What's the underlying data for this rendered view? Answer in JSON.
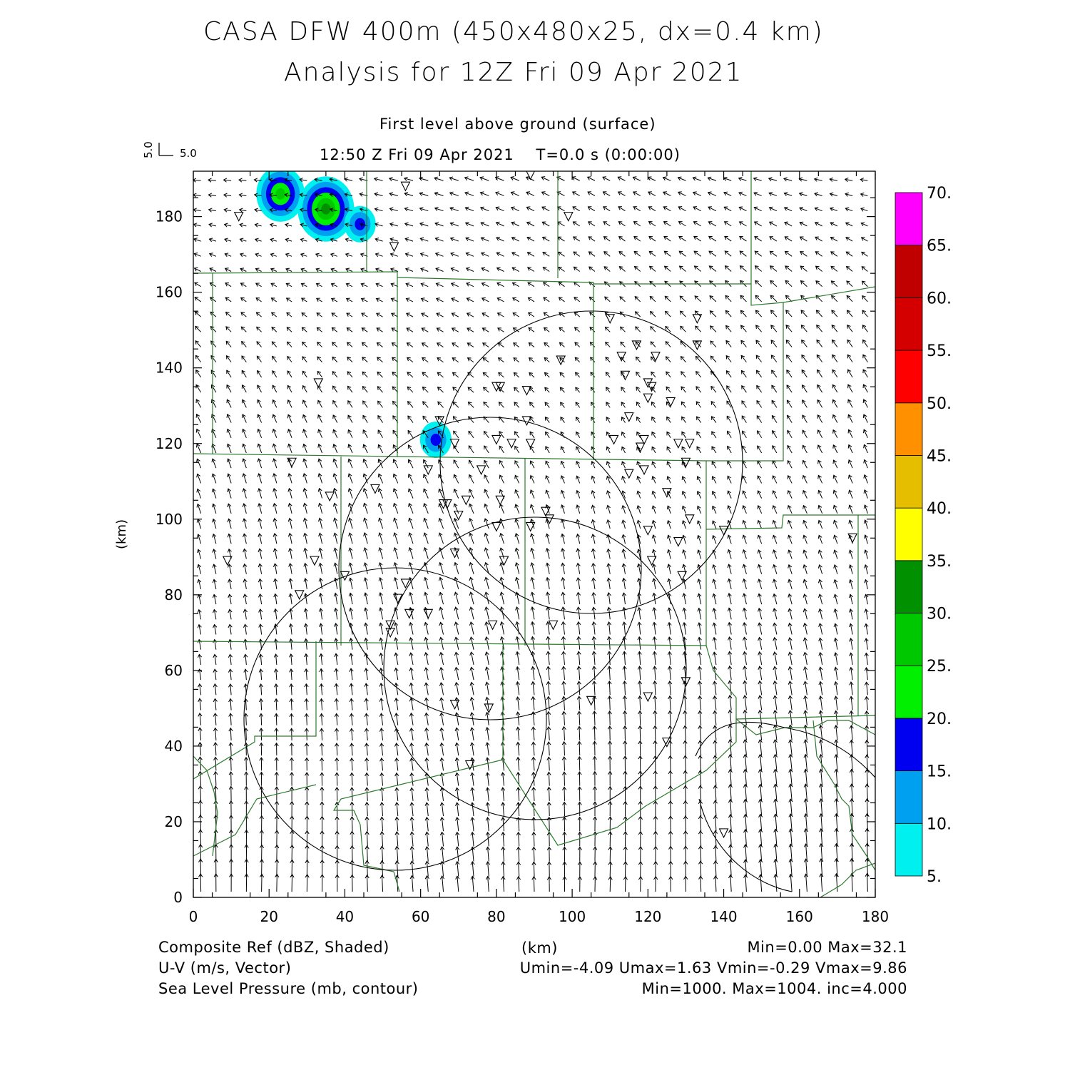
{
  "header": {
    "title_line1": "CASA DFW 400m (450x480x25, dx=0.4 km)",
    "title_line2": "Analysis for 12Z Fri 09 Apr 2021",
    "level": "First level above ground (surface)",
    "time": "12:50 Z Fri 09 Apr 2021    T=0.0 s (0:00:00)",
    "ref_vector_x": "5.0",
    "ref_vector_y": "5.0"
  },
  "axes": {
    "xlabel": "(km)",
    "ylabel": "(km)",
    "x_ticks": [
      "0",
      "20",
      "40",
      "60",
      "80",
      "100",
      "120",
      "140",
      "160",
      "180"
    ],
    "y_ticks": [
      "0",
      "20",
      "40",
      "60",
      "80",
      "100",
      "120",
      "140",
      "160",
      "180"
    ],
    "xlim": [
      0,
      180
    ],
    "ylim": [
      0,
      192
    ]
  },
  "colorbar": {
    "labels": [
      "5.",
      "10.",
      "15.",
      "20.",
      "25.",
      "30.",
      "35.",
      "40.",
      "45.",
      "50.",
      "55.",
      "60.",
      "65.",
      "70."
    ],
    "colors": [
      "#00f0f0",
      "#00a0f0",
      "#0000f0",
      "#00f000",
      "#00c800",
      "#009000",
      "#ffff00",
      "#e6be00",
      "#ff9000",
      "#ff0000",
      "#d40000",
      "#c00000",
      "#ff00ff"
    ]
  },
  "footer": {
    "left1": "Composite Ref (dBZ, Shaded)",
    "left2": "U-V (m/s, Vector)",
    "left3": "Sea Level Pressure (mb, contour)",
    "center": "(km)",
    "right1": "Min=0.00 Max=32.1",
    "right2": "Umin=-4.09 Umax=1.63 Vmin=-0.29 Vmax=9.86",
    "right3": "Min=1000. Max=1004. inc=4.000"
  },
  "stations": [
    [
      56,
      188
    ],
    [
      89,
      191
    ],
    [
      12,
      180
    ],
    [
      99,
      180
    ],
    [
      53,
      172
    ],
    [
      33,
      136
    ],
    [
      80,
      135
    ],
    [
      81,
      135
    ],
    [
      88,
      134
    ],
    [
      65,
      126
    ],
    [
      88,
      126
    ],
    [
      69,
      120
    ],
    [
      80,
      121
    ],
    [
      84,
      120
    ],
    [
      89,
      120
    ],
    [
      26,
      115
    ],
    [
      62,
      113
    ],
    [
      76,
      113
    ],
    [
      36,
      106
    ],
    [
      48,
      108
    ],
    [
      66,
      104
    ],
    [
      67,
      104
    ],
    [
      72,
      105
    ],
    [
      81,
      105
    ],
    [
      70,
      101
    ],
    [
      93,
      102
    ],
    [
      80,
      98
    ],
    [
      89,
      98
    ],
    [
      94,
      100
    ],
    [
      9,
      89
    ],
    [
      32,
      89
    ],
    [
      69,
      91
    ],
    [
      82,
      89
    ],
    [
      40,
      85
    ],
    [
      56,
      83
    ],
    [
      28,
      80
    ],
    [
      54,
      79
    ],
    [
      52,
      72
    ],
    [
      52,
      70
    ],
    [
      57,
      75
    ],
    [
      62,
      75
    ],
    [
      79,
      72
    ],
    [
      95,
      72
    ],
    [
      69,
      51
    ],
    [
      78,
      50
    ],
    [
      105,
      52
    ],
    [
      73,
      35
    ],
    [
      110,
      153
    ],
    [
      113,
      143
    ],
    [
      117,
      146
    ],
    [
      122,
      143
    ],
    [
      97,
      142
    ],
    [
      114,
      138
    ],
    [
      120,
      136
    ],
    [
      121,
      135
    ],
    [
      120,
      132
    ],
    [
      126,
      131
    ],
    [
      115,
      127
    ],
    [
      111,
      121
    ],
    [
      119,
      121
    ],
    [
      128,
      120
    ],
    [
      131,
      120
    ],
    [
      118,
      119
    ],
    [
      130,
      115
    ],
    [
      115,
      112
    ],
    [
      119,
      113
    ],
    [
      125,
      107
    ],
    [
      131,
      100
    ],
    [
      128,
      94
    ],
    [
      120,
      97
    ],
    [
      121,
      89
    ],
    [
      129,
      85
    ],
    [
      140,
      97
    ],
    [
      174,
      95
    ],
    [
      120,
      53
    ],
    [
      125,
      41
    ],
    [
      130,
      57
    ],
    [
      133,
      153
    ],
    [
      133,
      146
    ],
    [
      140,
      17
    ]
  ],
  "reflectivity_cells": [
    {
      "x": 23,
      "y": 186,
      "dbz": 25
    },
    {
      "x": 35,
      "y": 182,
      "dbz": 30
    },
    {
      "x": 44,
      "y": 178,
      "dbz": 15
    },
    {
      "x": 64,
      "y": 121,
      "dbz": 15
    }
  ]
}
